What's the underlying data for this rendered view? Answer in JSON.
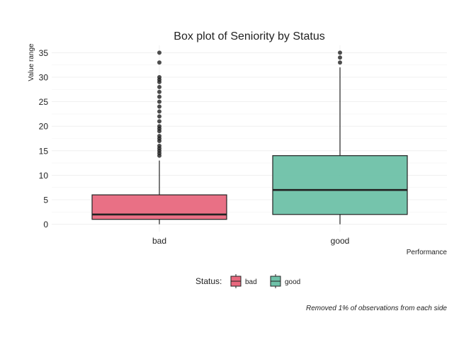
{
  "chart_data": {
    "type": "box",
    "title": "Box plot of Seniority by Status",
    "xlabel": "Performance",
    "ylabel": "Value range",
    "ylim": [
      -1.5,
      36.5
    ],
    "yticks": [
      0,
      5,
      10,
      15,
      20,
      25,
      30,
      35
    ],
    "categories": [
      "bad",
      "good"
    ],
    "grid": true,
    "legend": {
      "title": "Status:",
      "position": "bottom",
      "entries": [
        "bad",
        "good"
      ]
    },
    "caption": "Removed 1% of observations from each side",
    "series": [
      {
        "name": "bad",
        "color": "#E8687E",
        "min": 0,
        "q1": 1,
        "median": 2,
        "q3": 6,
        "max": 13,
        "outliers": [
          14,
          14.5,
          15,
          15.5,
          16,
          17,
          17.5,
          18,
          19,
          19.5,
          20,
          21,
          22,
          23,
          24,
          25,
          26,
          27,
          28,
          29,
          29.5,
          30,
          33,
          35
        ]
      },
      {
        "name": "good",
        "color": "#6EC1A8",
        "min": 0,
        "q1": 2,
        "median": 7,
        "q3": 14,
        "max": 32,
        "outliers": [
          33,
          34,
          35
        ]
      }
    ]
  }
}
